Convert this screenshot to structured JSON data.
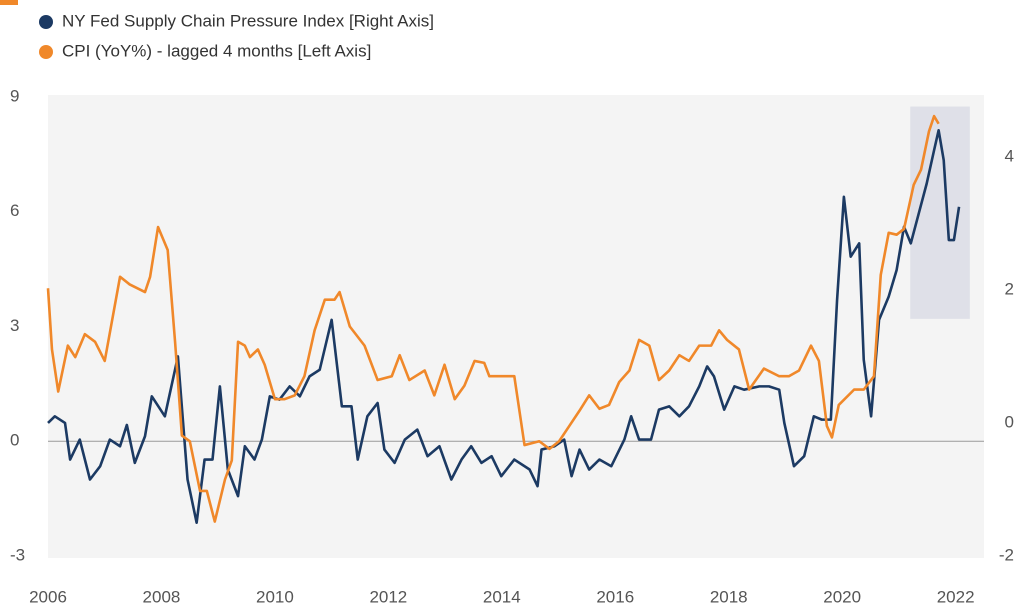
{
  "chart_data": {
    "type": "line",
    "xlim": [
      2006,
      2022.5
    ],
    "xticks": [
      2006,
      2008,
      2010,
      2012,
      2014,
      2016,
      2018,
      2020,
      2022
    ],
    "ylim": [
      -3,
      9
    ],
    "yticks": [
      -3,
      0,
      3,
      6,
      9
    ],
    "y2lim": [
      -2,
      4.9
    ],
    "y2ticks": [
      -2,
      0,
      2,
      4
    ],
    "zero_line": true,
    "legend": "top-left",
    "shade_x": [
      2021.2,
      2022.25
    ],
    "shade_y": [
      3.2,
      8.75
    ],
    "shade_color": "#dfe0e8",
    "series": [
      {
        "name": "NY Fed Supply Chain Pressure Index [Right Axis]",
        "color": "#1c3a63",
        "axis": "y2",
        "x": [
          2006,
          2006.12,
          2006.3,
          2006.39,
          2006.56,
          2006.74,
          2006.92,
          2007.09,
          2007.27,
          2007.39,
          2007.53,
          2007.71,
          2007.83,
          2008.06,
          2008.29,
          2008.46,
          2008.62,
          2008.76,
          2008.9,
          2009.03,
          2009.17,
          2009.35,
          2009.47,
          2009.64,
          2009.77,
          2009.91,
          2010.08,
          2010.26,
          2010.44,
          2010.61,
          2010.79,
          2011,
          2011.18,
          2011.35,
          2011.46,
          2011.63,
          2011.81,
          2011.93,
          2012.11,
          2012.29,
          2012.51,
          2012.69,
          2012.9,
          2013.11,
          2013.29,
          2013.46,
          2013.64,
          2013.82,
          2013.99,
          2014.22,
          2014.49,
          2014.63,
          2014.7,
          2014.93,
          2015.1,
          2015.23,
          2015.37,
          2015.54,
          2015.72,
          2015.93,
          2016.16,
          2016.28,
          2016.42,
          2016.63,
          2016.77,
          2016.95,
          2017.13,
          2017.3,
          2017.48,
          2017.62,
          2017.74,
          2017.92,
          2018.1,
          2018.27,
          2018.54,
          2018.71,
          2018.89,
          2018.98,
          2019.15,
          2019.33,
          2019.5,
          2019.64,
          2019.8,
          2019.91,
          2020.03,
          2020.15,
          2020.3,
          2020.38,
          2020.51,
          2020.65,
          2020.82,
          2020.96,
          2021.09,
          2021.21,
          2021.35,
          2021.49,
          2021.62,
          2021.7,
          2021.79,
          2021.88,
          2021.97,
          2022.06
        ],
        "values": [
          0,
          0.1,
          0,
          -0.55,
          -0.25,
          -0.85,
          -0.65,
          -0.25,
          -0.35,
          -0.03,
          -0.6,
          -0.2,
          0.4,
          0.1,
          1,
          -0.85,
          -1.5,
          -0.55,
          -0.55,
          0.55,
          -0.7,
          -1.1,
          -0.35,
          -0.55,
          -0.25,
          0.4,
          0.35,
          0.55,
          0.4,
          0.7,
          0.8,
          1.55,
          0.25,
          0.25,
          -0.55,
          0.1,
          0.3,
          -0.4,
          -0.6,
          -0.25,
          -0.1,
          -0.5,
          -0.35,
          -0.85,
          -0.55,
          -0.35,
          -0.6,
          -0.5,
          -0.8,
          -0.55,
          -0.7,
          -0.95,
          -0.4,
          -0.35,
          -0.25,
          -0.8,
          -0.4,
          -0.7,
          -0.55,
          -0.65,
          -0.25,
          0.1,
          -0.25,
          -0.25,
          0.2,
          0.25,
          0.1,
          0.25,
          0.55,
          0.85,
          0.7,
          0.2,
          0.55,
          0.5,
          0.55,
          0.55,
          0.5,
          0,
          -0.65,
          -0.5,
          0.1,
          0.05,
          0.05,
          1.85,
          3.4,
          2.5,
          2.7,
          0.95,
          0.1,
          1.55,
          1.9,
          2.3,
          2.95,
          2.7,
          3.15,
          3.6,
          4.1,
          4.4,
          3.95,
          2.75,
          2.75,
          3.25
        ]
      },
      {
        "name": "CPI (YoY%) - lagged 4 months [Left Axis]",
        "color": "#f0882a",
        "axis": "y",
        "x": [
          2006,
          2006.07,
          2006.18,
          2006.35,
          2006.48,
          2006.65,
          2006.83,
          2007,
          2007.27,
          2007.44,
          2007.71,
          2007.8,
          2007.94,
          2008.11,
          2008.24,
          2008.36,
          2008.5,
          2008.68,
          2008.8,
          2008.94,
          2009.12,
          2009.24,
          2009.35,
          2009.47,
          2009.56,
          2009.7,
          2009.82,
          2010,
          2010.17,
          2010.35,
          2010.52,
          2010.7,
          2010.88,
          2011.05,
          2011.14,
          2011.32,
          2011.58,
          2011.81,
          2012.06,
          2012.2,
          2012.37,
          2012.64,
          2012.81,
          2012.99,
          2013.17,
          2013.34,
          2013.52,
          2013.69,
          2013.78,
          2013.96,
          2014.22,
          2014.4,
          2014.66,
          2014.84,
          2015.01,
          2015.19,
          2015.37,
          2015.54,
          2015.72,
          2015.89,
          2016.07,
          2016.25,
          2016.42,
          2016.6,
          2016.77,
          2016.95,
          2017.13,
          2017.3,
          2017.48,
          2017.69,
          2017.83,
          2017.97,
          2018.18,
          2018.36,
          2018.62,
          2018.89,
          2019.06,
          2019.24,
          2019.45,
          2019.59,
          2019.73,
          2019.82,
          2019.94,
          2020.21,
          2020.38,
          2020.56,
          2020.68,
          2020.82,
          2020.96,
          2021.09,
          2021.26,
          2021.39,
          2021.53,
          2021.62,
          2021.7
        ],
        "values": [
          4,
          2.4,
          1.3,
          2.5,
          2.2,
          2.8,
          2.6,
          2.1,
          4.3,
          4.1,
          3.9,
          4.3,
          5.6,
          5,
          2.6,
          0.15,
          0,
          -1.3,
          -1.3,
          -2.1,
          -1,
          -0.5,
          2.6,
          2.5,
          2.2,
          2.4,
          2,
          1.1,
          1.1,
          1.2,
          1.7,
          2.9,
          3.7,
          3.7,
          3.9,
          3,
          2.5,
          1.6,
          1.7,
          2.25,
          1.6,
          1.85,
          1.2,
          2,
          1.1,
          1.45,
          2.1,
          2.05,
          1.7,
          1.7,
          1.7,
          -0.1,
          0,
          -0.2,
          0,
          0.4,
          0.8,
          1.2,
          0.85,
          0.95,
          1.55,
          1.85,
          2.65,
          2.5,
          1.6,
          1.85,
          2.25,
          2.1,
          2.5,
          2.5,
          2.9,
          2.65,
          2.4,
          1.35,
          1.9,
          1.7,
          1.7,
          1.85,
          2.5,
          2.1,
          0.4,
          0.1,
          0.95,
          1.35,
          1.35,
          1.7,
          4.35,
          5.45,
          5.4,
          5.55,
          6.7,
          7.1,
          8.1,
          8.5,
          8.3
        ]
      }
    ]
  }
}
